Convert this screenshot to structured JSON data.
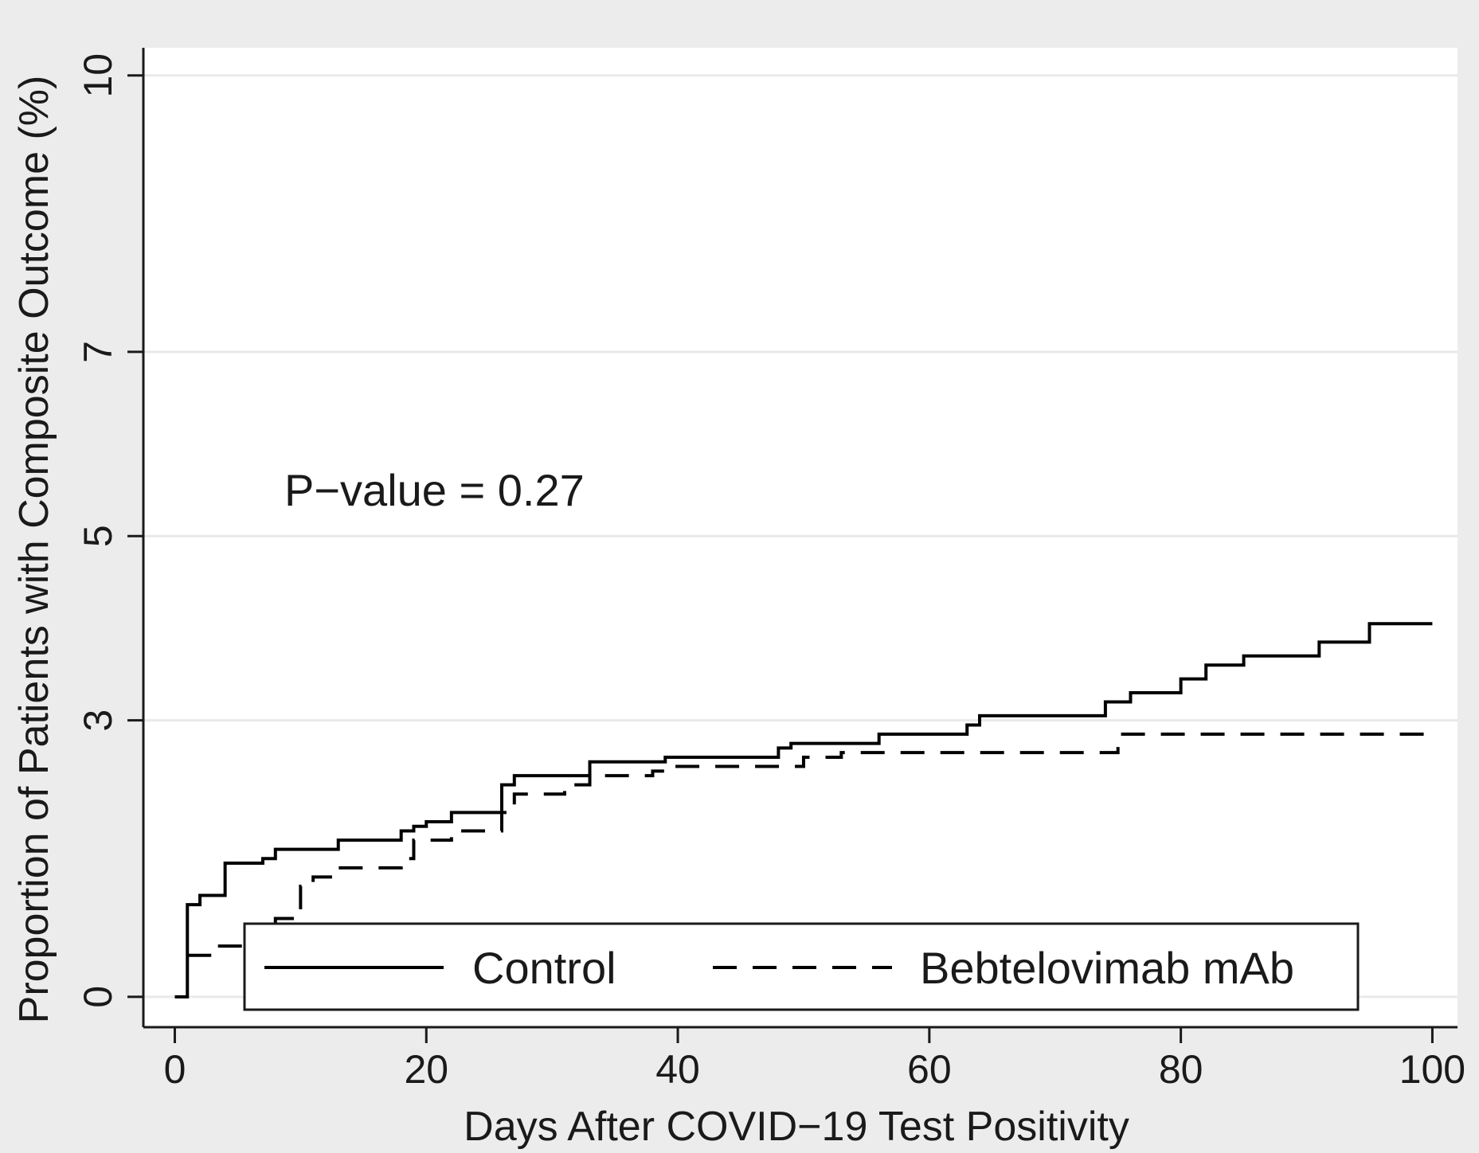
{
  "chart_data": {
    "type": "line",
    "title": "",
    "xlabel": "Days After COVID−19 Test Positivity",
    "ylabel": "Proportion of Patients with Composite Outcome (%)",
    "xlim": [
      -2.5,
      102
    ],
    "ylim": [
      -0.33,
      10.3
    ],
    "xticks": [
      0,
      20,
      40,
      60,
      80,
      100
    ],
    "xtick_labels": [
      "0",
      "20",
      "40",
      "60",
      "80",
      "100"
    ],
    "yticks": [
      0,
      3,
      5,
      7,
      10
    ],
    "ytick_labels": [
      "0",
      "3",
      "5",
      "7",
      "10"
    ],
    "grid": true,
    "annotation": "P−value = 0.27",
    "legend": {
      "placement": "bottom",
      "entries": [
        "Control",
        "Bebtelovimab mAb"
      ]
    },
    "series": [
      {
        "name": "Control",
        "style": "solid",
        "color": "#000000",
        "step": [
          [
            0,
            0
          ],
          [
            1,
            1
          ],
          [
            2,
            1.1
          ],
          [
            4,
            1.45
          ],
          [
            7,
            1.5
          ],
          [
            8,
            1.6
          ],
          [
            13,
            1.7
          ],
          [
            18,
            1.8
          ],
          [
            19,
            1.85
          ],
          [
            20,
            1.9
          ],
          [
            22,
            2.0
          ],
          [
            26,
            2.3
          ],
          [
            27,
            2.4
          ],
          [
            33,
            2.55
          ],
          [
            39,
            2.6
          ],
          [
            48,
            2.7
          ],
          [
            49,
            2.75
          ],
          [
            56,
            2.85
          ],
          [
            63,
            2.95
          ],
          [
            64,
            3.05
          ],
          [
            74,
            3.2
          ],
          [
            76,
            3.3
          ],
          [
            80,
            3.45
          ],
          [
            82,
            3.6
          ],
          [
            85,
            3.7
          ],
          [
            91,
            3.85
          ],
          [
            95,
            4.05
          ],
          [
            100,
            4.05
          ]
        ]
      },
      {
        "name": "Bebtelovimab mAb",
        "style": "dashed",
        "color": "#000000",
        "step": [
          [
            1,
            0.45
          ],
          [
            3,
            0.55
          ],
          [
            8,
            0.85
          ],
          [
            10,
            1.2
          ],
          [
            11,
            1.3
          ],
          [
            13,
            1.4
          ],
          [
            18,
            1.5
          ],
          [
            19,
            1.7
          ],
          [
            22,
            1.8
          ],
          [
            26,
            2.0
          ],
          [
            27,
            2.2
          ],
          [
            31,
            2.3
          ],
          [
            33,
            2.4
          ],
          [
            38,
            2.45
          ],
          [
            39,
            2.5
          ],
          [
            50,
            2.6
          ],
          [
            53,
            2.65
          ],
          [
            75,
            2.85
          ],
          [
            100,
            2.85
          ]
        ]
      }
    ]
  }
}
